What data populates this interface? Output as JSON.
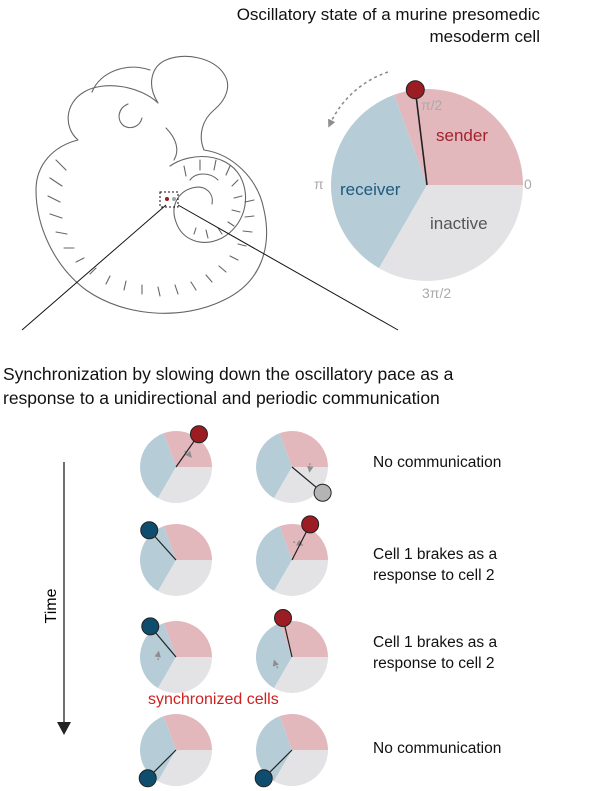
{
  "title_line1": "Oscillatory state of a murine presomedic",
  "title_line2": "mesoderm cell",
  "phase_labels": {
    "zero": "0",
    "pi_half": "π/2",
    "pi": "π",
    "three_pi_half": "3π/2"
  },
  "sectors": {
    "sender": "sender",
    "receiver": "receiver",
    "inactive": "inactive"
  },
  "sync_heading_line1": "Synchronization by slowing down the oscillatory pace as a",
  "sync_heading_line2": "response to a unidirectional and periodic communication",
  "time_axis_label": "Time",
  "synchronized_label": "synchronized cells",
  "rows": [
    {
      "label_line1": "No communication",
      "label_line2": ""
    },
    {
      "label_line1": "Cell 1 brakes as a",
      "label_line2": "response to cell 2"
    },
    {
      "label_line1": "Cell 1 brakes as a",
      "label_line2": "response to cell 2"
    },
    {
      "label_line1": "No communication",
      "label_line2": ""
    }
  ],
  "colors": {
    "sender": "#e2b8bd",
    "receiver": "#b6ccd7",
    "inactive": "#e3e3e5",
    "sender_text": "#a2232c",
    "receiver_text": "#1e5a7c",
    "inactive_text": "#555555",
    "marker_red": "#9b1c22",
    "marker_blue": "#0f4d6e",
    "marker_gray": "#b4b4b4",
    "synchronized": "#d02020"
  }
}
